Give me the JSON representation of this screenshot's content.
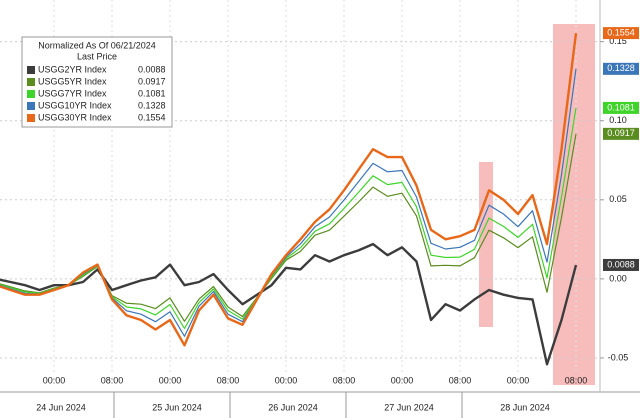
{
  "chart_data": {
    "type": "line",
    "legend_title": "Normalized As Of 06/21/2024",
    "legend_subtitle": "Last Price",
    "categories": [
      null,
      null,
      null,
      null,
      "00:00",
      null,
      null,
      null,
      "08:00",
      null,
      null,
      null,
      "00:00",
      null,
      null,
      null,
      "08:00",
      null,
      null,
      null,
      "00:00",
      null,
      null,
      null,
      "08:00",
      null,
      null,
      null,
      "00:00",
      null,
      null,
      null,
      "08:00",
      null,
      null,
      null,
      "00:00",
      null,
      null,
      null,
      "08:00"
    ],
    "date_labels": [
      "24 Jun 2024",
      "25 Jun 2024",
      "26 Jun 2024",
      "27 Jun 2024",
      "28 Jun 2024"
    ],
    "ylim": [
      -0.07,
      0.17
    ],
    "yticks": [
      -0.05,
      {
        "value": 0,
        "label": "0.00"
      },
      0.05,
      {
        "value": 0.1,
        "label": "0.10"
      },
      0.15
    ],
    "grid": true,
    "series": [
      {
        "name": "USGG2YR Index",
        "color": "#3c3c3c",
        "values": [
          0,
          -0.002,
          -0.004,
          -0.007,
          -0.004,
          -0.004,
          -0.002,
          0.006,
          -0.007,
          -0.004,
          -0.001,
          0.001,
          0.009,
          -0.004,
          -0.002,
          0.003,
          -0.007,
          -0.016,
          -0.01,
          -0.004,
          0.007,
          0.006,
          0.015,
          0.011,
          0.015,
          0.018,
          0.022,
          0.015,
          0.02,
          0.011,
          -0.026,
          -0.016,
          -0.02,
          -0.013,
          -0.007,
          -0.01,
          -0.012,
          -0.013,
          -0.054,
          -0.026,
          0.0088
        ]
      },
      {
        "name": "USGG5YR Index",
        "color": "#5b8c1f",
        "values": [
          -0.0024,
          -0.005,
          -0.0076,
          -0.0088,
          -0.0058,
          -0.004,
          0.0016,
          0.0078,
          -0.0106,
          -0.0154,
          -0.016,
          -0.0188,
          -0.012,
          -0.0268,
          -0.0128,
          -0.0048,
          -0.0178,
          -0.0238,
          -0.0118,
          0.0002,
          0.0118,
          0.0174,
          0.0276,
          0.0308,
          0.0396,
          0.0486,
          0.058,
          0.0522,
          0.0542,
          0.0398,
          0.0082,
          0.0086,
          0.0082,
          0.0134,
          0.0308,
          0.026,
          0.0198,
          0.0266,
          -0.0084,
          0.0388,
          0.0917
        ]
      },
      {
        "name": "USGG7YR Index",
        "color": "#3fd42a",
        "values": [
          -0.0029,
          -0.0056,
          -0.0083,
          -0.0092,
          -0.0062,
          -0.004,
          0.0023,
          0.0082,
          -0.0113,
          -0.0177,
          -0.019,
          -0.0228,
          -0.0162,
          -0.0314,
          -0.015,
          -0.0064,
          -0.02,
          -0.0254,
          -0.0122,
          0.001,
          0.0128,
          0.0197,
          0.0301,
          0.0348,
          0.0445,
          0.0547,
          0.0652,
          0.0596,
          0.061,
          0.0456,
          0.015,
          0.0135,
          0.0138,
          0.0187,
          0.0384,
          0.0332,
          0.0262,
          0.0345,
          0.0007,
          0.0518,
          0.1081
        ]
      },
      {
        "name": "USGG10YR Index",
        "color": "#3b76b9",
        "values": [
          -0.0034,
          -0.0063,
          -0.0091,
          -0.0096,
          -0.0066,
          -0.004,
          0.0031,
          0.0086,
          -0.0121,
          -0.0202,
          -0.0223,
          -0.0271,
          -0.0208,
          -0.0363,
          -0.0173,
          -0.008,
          -0.0223,
          -0.0271,
          -0.0126,
          0.002,
          0.0138,
          0.0222,
          0.0329,
          0.0391,
          0.0499,
          0.0614,
          0.073,
          0.0677,
          0.0685,
          0.0518,
          0.0225,
          0.0189,
          0.02,
          0.0244,
          0.0466,
          0.041,
          0.033,
          0.0431,
          0.0106,
          0.0658,
          0.1328
        ]
      },
      {
        "name": "USGG30YR Index",
        "color": "#e8681a",
        "values": [
          -0.004,
          -0.007,
          -0.01,
          -0.01,
          -0.007,
          -0.004,
          0.004,
          0.009,
          -0.013,
          -0.023,
          -0.026,
          -0.032,
          -0.026,
          -0.042,
          -0.02,
          -0.01,
          -0.025,
          -0.029,
          -0.013,
          0.003,
          0.015,
          0.025,
          0.036,
          0.044,
          0.056,
          0.069,
          0.082,
          0.077,
          0.077,
          0.059,
          0.031,
          0.025,
          0.027,
          0.031,
          0.056,
          0.05,
          0.041,
          0.053,
          0.022,
          0.082,
          0.1554
        ]
      }
    ]
  }
}
